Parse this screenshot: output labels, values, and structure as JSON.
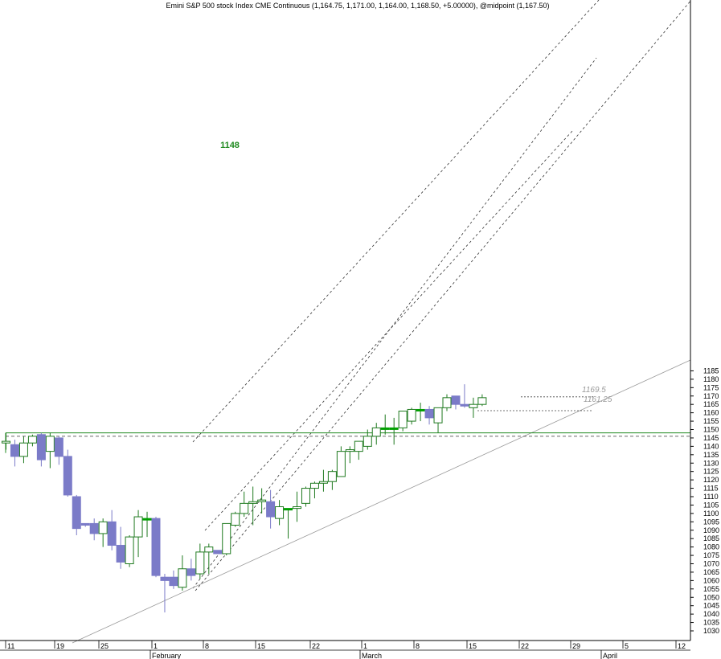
{
  "chart_data": {
    "type": "candlestick",
    "title": "Emini S&P 500 stock Index CME Continuous (1,164.75, 1,171.00, 1,164.00, 1,168.50, +5.00000), @midpoint (1,167.50)",
    "ylim": [
      1025,
      1188
    ],
    "yticks": [
      1030,
      1035,
      1040,
      1045,
      1050,
      1055,
      1060,
      1065,
      1070,
      1075,
      1080,
      1085,
      1090,
      1095,
      1100,
      1105,
      1110,
      1115,
      1120,
      1125,
      1130,
      1135,
      1140,
      1145,
      1150,
      1155,
      1160,
      1165,
      1170,
      1175,
      1180,
      1185
    ],
    "x_tick_labels": [
      "11",
      "19",
      "25",
      "1",
      "8",
      "15",
      "22",
      "1",
      "8",
      "15",
      "22",
      "29",
      "5",
      "12"
    ],
    "month_labels": [
      "February",
      "March",
      "April"
    ],
    "colors": {
      "up": "#1f7a1f",
      "down": "#7b7bc8",
      "flat": "#00a000",
      "trend": "#1f8a1f",
      "channel": "#333333",
      "trendline_low": "#999999",
      "grid_axis": "#000000"
    },
    "candles": [
      {
        "o": 1142,
        "h": 1148,
        "l": 1138,
        "c": 1143
      },
      {
        "o": 1141,
        "h": 1144,
        "l": 1128,
        "c": 1134
      },
      {
        "o": 1134,
        "h": 1146,
        "l": 1130,
        "c": 1142
      },
      {
        "o": 1142,
        "h": 1147,
        "l": 1140,
        "c": 1146
      },
      {
        "o": 1147,
        "h": 1148,
        "l": 1128,
        "c": 1132
      },
      {
        "o": 1137,
        "h": 1148,
        "l": 1127,
        "c": 1146
      },
      {
        "o": 1145,
        "h": 1146,
        "l": 1129,
        "c": 1134
      },
      {
        "o": 1134,
        "h": 1138,
        "l": 1110,
        "c": 1111
      },
      {
        "o": 1110,
        "h": 1111,
        "l": 1087,
        "c": 1091
      },
      {
        "o": 1094,
        "h": 1094,
        "l": 1092,
        "c": 1093
      },
      {
        "o": 1094,
        "h": 1097,
        "l": 1084,
        "c": 1088
      },
      {
        "o": 1088,
        "h": 1097,
        "l": 1080,
        "c": 1095
      },
      {
        "o": 1095,
        "h": 1102,
        "l": 1078,
        "c": 1081
      },
      {
        "o": 1081,
        "h": 1092,
        "l": 1067,
        "c": 1071
      },
      {
        "o": 1070,
        "h": 1087,
        "l": 1068,
        "c": 1086
      },
      {
        "o": 1086,
        "h": 1102,
        "l": 1074,
        "c": 1098
      },
      {
        "o": 1097,
        "h": 1101,
        "l": 1086,
        "c": 1097
      },
      {
        "o": 1097,
        "h": 1098,
        "l": 1062,
        "c": 1063
      },
      {
        "o": 1062,
        "h": 1064,
        "l": 1041,
        "c": 1060
      },
      {
        "o": 1062,
        "h": 1066,
        "l": 1055,
        "c": 1057
      },
      {
        "o": 1056,
        "h": 1075,
        "l": 1054,
        "c": 1067
      },
      {
        "o": 1067,
        "h": 1073,
        "l": 1060,
        "c": 1063
      },
      {
        "o": 1064,
        "h": 1082,
        "l": 1061,
        "c": 1077
      },
      {
        "o": 1077,
        "h": 1082,
        "l": 1064,
        "c": 1080
      },
      {
        "o": 1078,
        "h": 1078,
        "l": 1076,
        "c": 1076
      },
      {
        "o": 1076,
        "h": 1094,
        "l": 1075,
        "c": 1094
      },
      {
        "o": 1093,
        "h": 1101,
        "l": 1092,
        "c": 1100
      },
      {
        "o": 1100,
        "h": 1113,
        "l": 1098,
        "c": 1106
      },
      {
        "o": 1106,
        "h": 1116,
        "l": 1093,
        "c": 1107
      },
      {
        "o": 1107,
        "h": 1115,
        "l": 1100,
        "c": 1108
      },
      {
        "o": 1107,
        "h": 1114,
        "l": 1091,
        "c": 1098
      },
      {
        "o": 1097,
        "h": 1108,
        "l": 1093,
        "c": 1104
      },
      {
        "o": 1103,
        "h": 1103,
        "l": 1085,
        "c": 1103
      },
      {
        "o": 1103,
        "h": 1113,
        "l": 1095,
        "c": 1104
      },
      {
        "o": 1106,
        "h": 1116,
        "l": 1104,
        "c": 1115
      },
      {
        "o": 1115,
        "h": 1119,
        "l": 1109,
        "c": 1118
      },
      {
        "o": 1118,
        "h": 1126,
        "l": 1113,
        "c": 1119
      },
      {
        "o": 1119,
        "h": 1126,
        "l": 1114,
        "c": 1125
      },
      {
        "o": 1122,
        "h": 1140,
        "l": 1122,
        "c": 1137
      },
      {
        "o": 1137,
        "h": 1140,
        "l": 1130,
        "c": 1138
      },
      {
        "o": 1137,
        "h": 1142,
        "l": 1132,
        "c": 1143
      },
      {
        "o": 1140,
        "h": 1150,
        "l": 1138,
        "c": 1146
      },
      {
        "o": 1146,
        "h": 1154,
        "l": 1141,
        "c": 1151
      },
      {
        "o": 1151,
        "h": 1159,
        "l": 1147,
        "c": 1151
      },
      {
        "o": 1151,
        "h": 1157,
        "l": 1141,
        "c": 1151
      },
      {
        "o": 1151,
        "h": 1161,
        "l": 1149,
        "c": 1161
      },
      {
        "o": 1155,
        "h": 1163,
        "l": 1153,
        "c": 1162
      },
      {
        "o": 1162,
        "h": 1166,
        "l": 1155,
        "c": 1162
      },
      {
        "o": 1162,
        "h": 1164,
        "l": 1153,
        "c": 1157
      },
      {
        "o": 1154,
        "h": 1163,
        "l": 1148,
        "c": 1163
      },
      {
        "o": 1163,
        "h": 1171,
        "l": 1161,
        "c": 1169
      },
      {
        "o": 1170,
        "h": 1170,
        "l": 1162,
        "c": 1165
      },
      {
        "o": 1165,
        "h": 1177,
        "l": 1163,
        "c": 1164
      },
      {
        "o": 1163,
        "h": 1169,
        "l": 1157,
        "c": 1165
      },
      {
        "o": 1165,
        "h": 1171,
        "l": 1164,
        "c": 1169
      }
    ],
    "horizontal_lines": [
      {
        "value": 1148,
        "label": "1148",
        "style": "solid"
      },
      {
        "value": 1146,
        "style": "dashed"
      },
      {
        "value": 1169.5,
        "label": "1169.5",
        "style": "dotted"
      },
      {
        "value": 1161.25,
        "label": "1161.25",
        "style": "dotted"
      }
    ]
  }
}
